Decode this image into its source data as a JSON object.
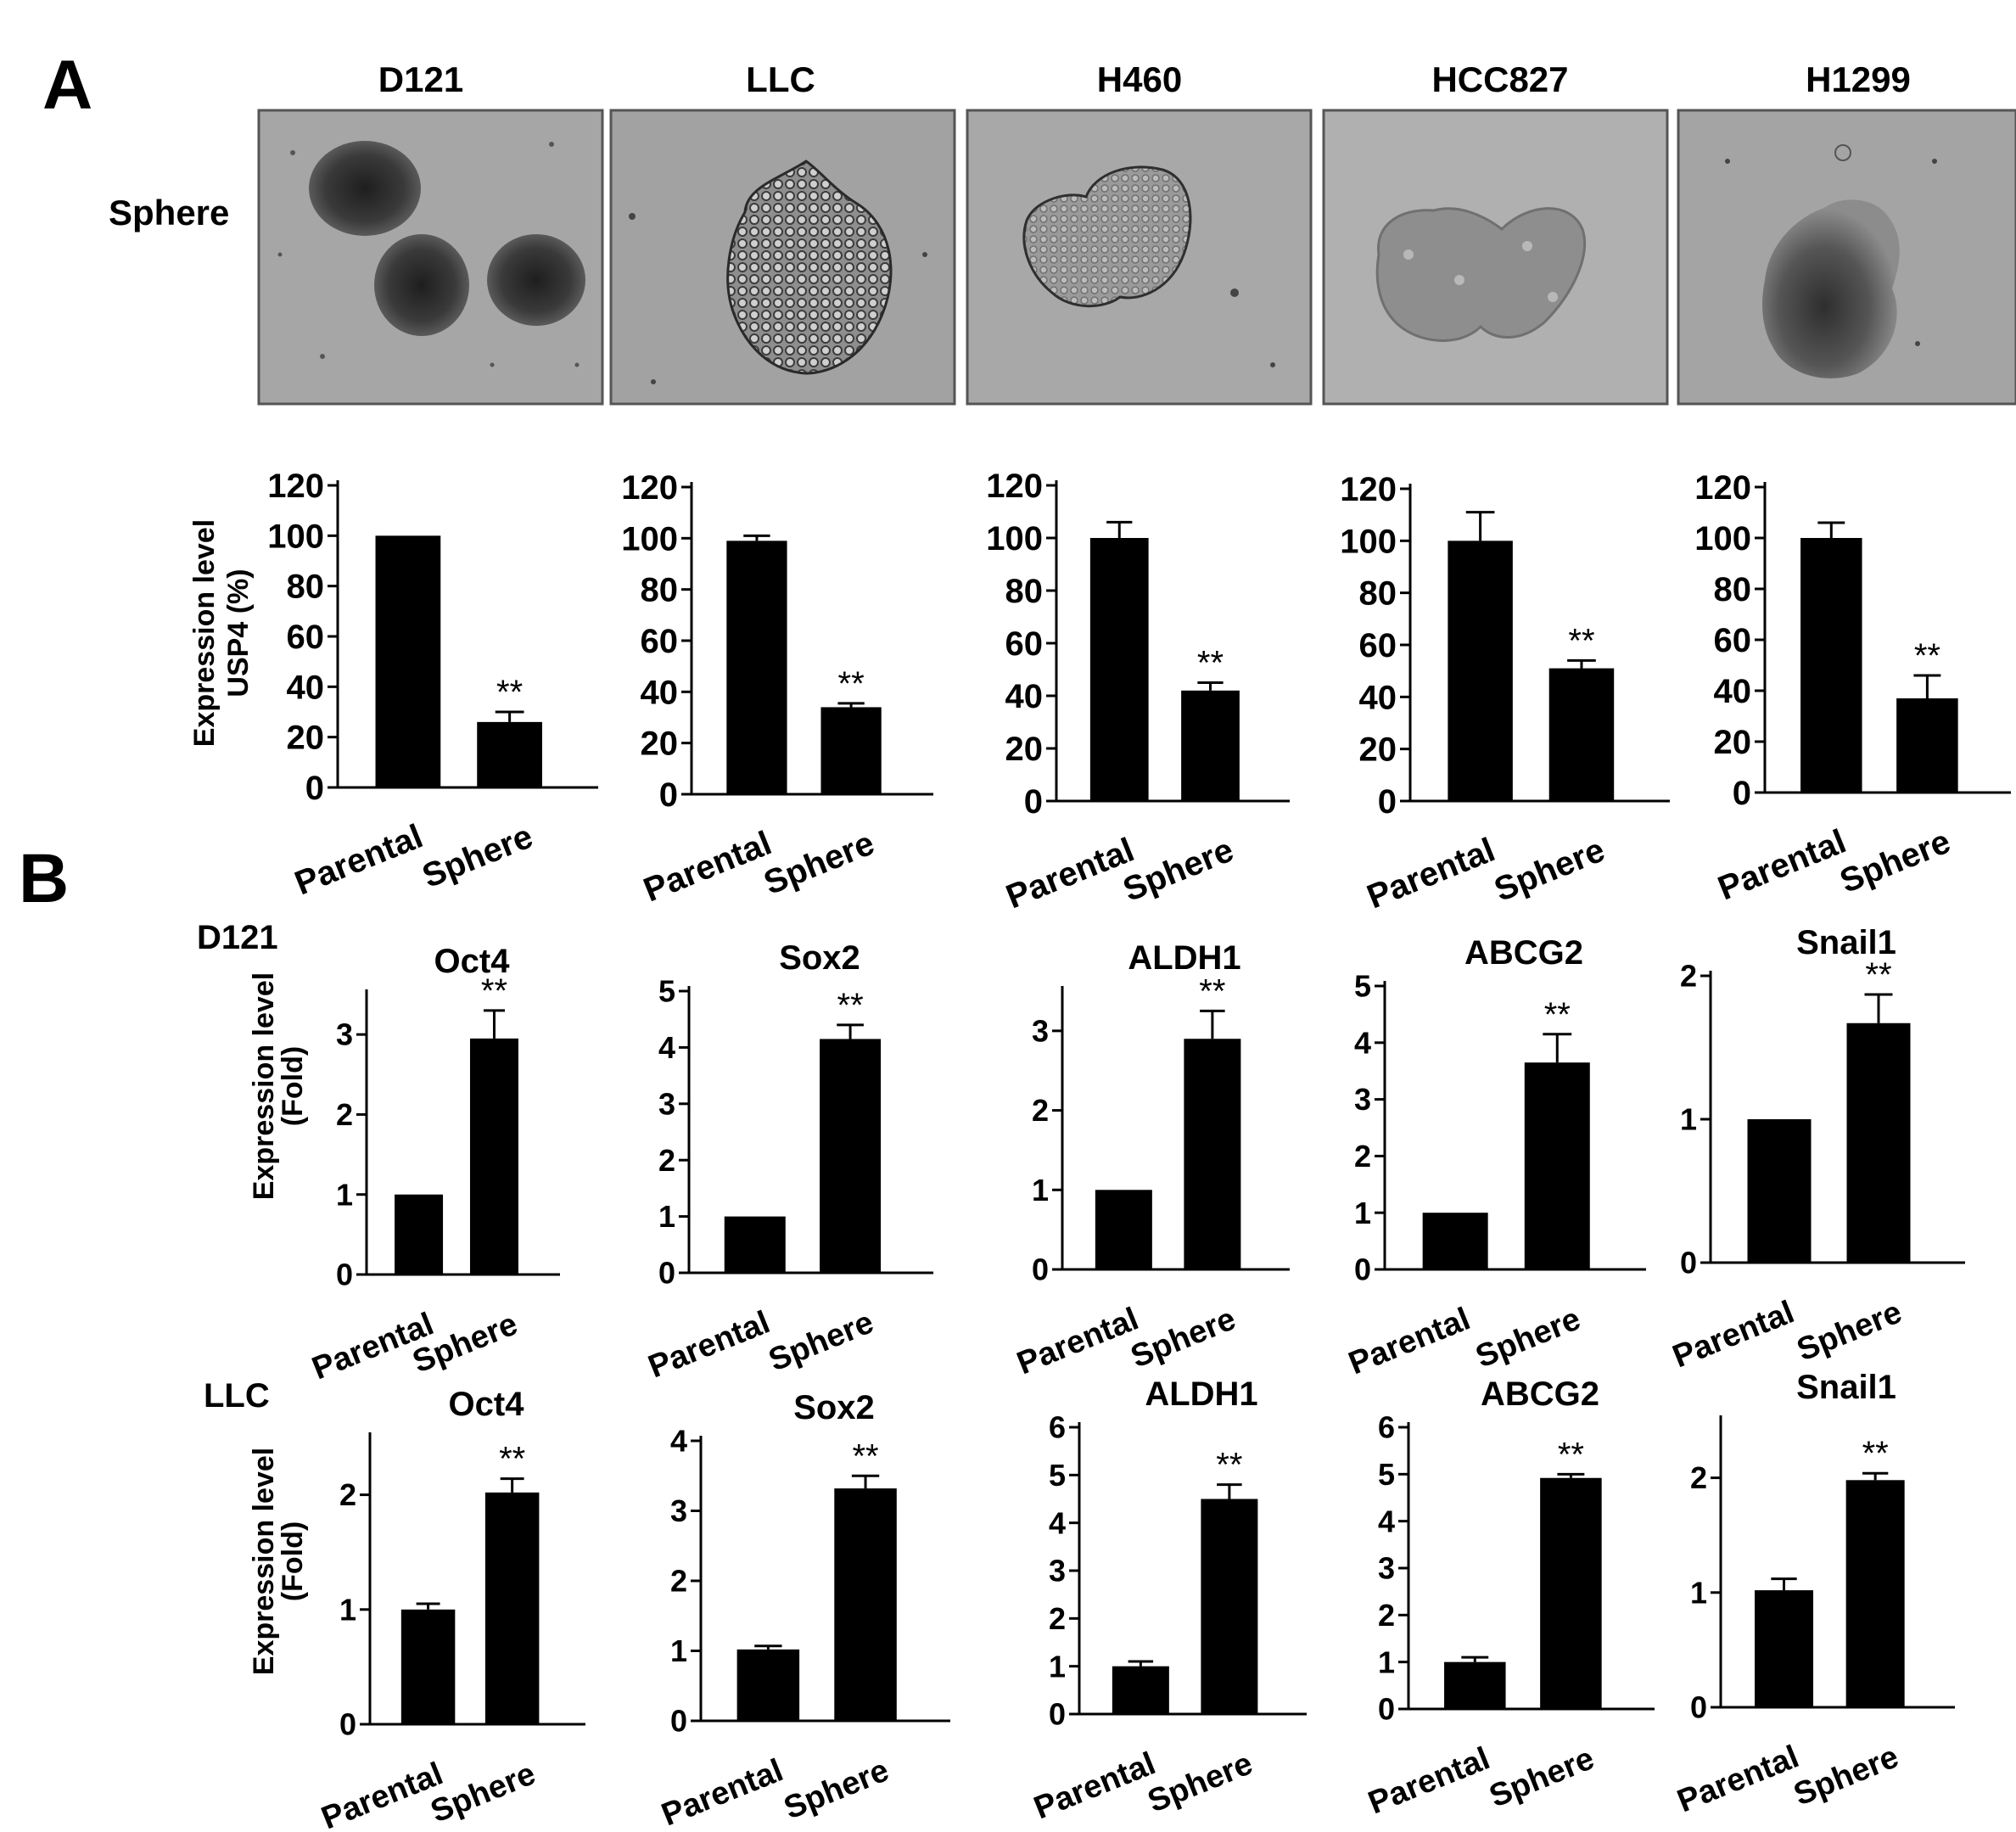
{
  "figure": {
    "panel_a_label": "A",
    "panel_b_label": "B",
    "panel_a_row_label": "Sphere",
    "panel_a_cell_lines": [
      "D121",
      "LLC",
      "H460",
      "HCC827",
      "H1299"
    ],
    "panel_a_ylabel": [
      "Expression level",
      "USP4 (%)"
    ],
    "panel_b_row_labels": [
      "D121",
      "LLC"
    ],
    "panel_b_ylabel": [
      "Expression level",
      "(Fold)"
    ]
  },
  "chart_data": [
    {
      "type": "bar",
      "group": "A",
      "title": "",
      "categories": [
        "Parental",
        "Sphere"
      ],
      "values": [
        100,
        26
      ],
      "errors": [
        0,
        4
      ],
      "ylim": [
        0,
        120
      ],
      "yticks": [
        0,
        20,
        40,
        60,
        80,
        100,
        120
      ],
      "significance": [
        "",
        "**"
      ]
    },
    {
      "type": "bar",
      "group": "A",
      "title": "",
      "categories": [
        "Parental",
        "Sphere"
      ],
      "values": [
        99,
        34
      ],
      "errors": [
        2,
        1.5
      ],
      "ylim": [
        0,
        120
      ],
      "yticks": [
        0,
        20,
        40,
        60,
        80,
        100,
        120
      ],
      "significance": [
        "",
        "**"
      ]
    },
    {
      "type": "bar",
      "group": "A",
      "title": "",
      "categories": [
        "Parental",
        "Sphere"
      ],
      "values": [
        100,
        42
      ],
      "errors": [
        6,
        3
      ],
      "ylim": [
        0,
        120
      ],
      "yticks": [
        0,
        20,
        40,
        60,
        80,
        100,
        120
      ],
      "significance": [
        "",
        "**"
      ]
    },
    {
      "type": "bar",
      "group": "A",
      "title": "",
      "categories": [
        "Parental",
        "Sphere"
      ],
      "values": [
        100,
        51
      ],
      "errors": [
        11,
        3
      ],
      "ylim": [
        0,
        120
      ],
      "yticks": [
        0,
        20,
        40,
        60,
        80,
        100,
        120
      ],
      "significance": [
        "",
        "**"
      ]
    },
    {
      "type": "bar",
      "group": "A",
      "title": "",
      "categories": [
        "Parental",
        "Sphere"
      ],
      "values": [
        100,
        37
      ],
      "errors": [
        6,
        9
      ],
      "ylim": [
        0,
        120
      ],
      "yticks": [
        0,
        20,
        40,
        60,
        80,
        100,
        120
      ],
      "significance": [
        "",
        "**"
      ]
    },
    {
      "type": "bar",
      "group": "B-D121",
      "title": "Oct4",
      "categories": [
        "Parental",
        "Sphere"
      ],
      "values": [
        1,
        2.95
      ],
      "errors": [
        0,
        0.35
      ],
      "ylim": [
        0,
        3.5
      ],
      "yticks": [
        0,
        1,
        2,
        3
      ],
      "significance": [
        "",
        "**"
      ]
    },
    {
      "type": "bar",
      "group": "B-D121",
      "title": "Sox2",
      "categories": [
        "Parental",
        "Sphere"
      ],
      "values": [
        1,
        4.15
      ],
      "errors": [
        0,
        0.25
      ],
      "ylim": [
        0,
        5
      ],
      "yticks": [
        0,
        1,
        2,
        3,
        4,
        5
      ],
      "significance": [
        "",
        "**"
      ]
    },
    {
      "type": "bar",
      "group": "B-D121",
      "title": "ALDH1",
      "categories": [
        "Parental",
        "Sphere"
      ],
      "values": [
        1,
        2.9
      ],
      "errors": [
        0,
        0.35
      ],
      "ylim": [
        0,
        3.5
      ],
      "yticks": [
        0,
        1,
        2,
        3
      ],
      "significance": [
        "",
        "**"
      ]
    },
    {
      "type": "bar",
      "group": "B-D121",
      "title": "ABCG2",
      "categories": [
        "Parental",
        "Sphere"
      ],
      "values": [
        1,
        3.65
      ],
      "errors": [
        0,
        0.5
      ],
      "ylim": [
        0,
        5
      ],
      "yticks": [
        0,
        1,
        2,
        3,
        4,
        5
      ],
      "significance": [
        "",
        "**"
      ]
    },
    {
      "type": "bar",
      "group": "B-D121",
      "title": "Snail1",
      "categories": [
        "Parental",
        "Sphere"
      ],
      "values": [
        1,
        1.67
      ],
      "errors": [
        0,
        0.2
      ],
      "ylim": [
        0,
        2
      ],
      "yticks": [
        0,
        1,
        2
      ],
      "significance": [
        "",
        "**"
      ]
    },
    {
      "type": "bar",
      "group": "B-LLC",
      "title": "Oct4",
      "categories": [
        "Parental",
        "Sphere"
      ],
      "values": [
        1,
        2.02
      ],
      "errors": [
        0.05,
        0.12
      ],
      "ylim": [
        0,
        2.5
      ],
      "yticks": [
        0,
        1,
        2
      ],
      "significance": [
        "",
        "**"
      ]
    },
    {
      "type": "bar",
      "group": "B-LLC",
      "title": "Sox2",
      "categories": [
        "Parental",
        "Sphere"
      ],
      "values": [
        1.02,
        3.32
      ],
      "errors": [
        0.05,
        0.18
      ],
      "ylim": [
        0,
        4
      ],
      "yticks": [
        0,
        1,
        2,
        3,
        4
      ],
      "significance": [
        "",
        "**"
      ]
    },
    {
      "type": "bar",
      "group": "B-LLC",
      "title": "ALDH1",
      "categories": [
        "Parental",
        "Sphere"
      ],
      "values": [
        1,
        4.5
      ],
      "errors": [
        0.1,
        0.3
      ],
      "ylim": [
        0,
        6
      ],
      "yticks": [
        0,
        1,
        2,
        3,
        4,
        5,
        6
      ],
      "significance": [
        "",
        "**"
      ]
    },
    {
      "type": "bar",
      "group": "B-LLC",
      "title": "ABCG2",
      "categories": [
        "Parental",
        "Sphere"
      ],
      "values": [
        1,
        4.92
      ],
      "errors": [
        0.1,
        0.08
      ],
      "ylim": [
        0,
        6
      ],
      "yticks": [
        0,
        1,
        2,
        3,
        4,
        5,
        6
      ],
      "significance": [
        "",
        "**"
      ]
    },
    {
      "type": "bar",
      "group": "B-LLC",
      "title": "Snail1",
      "categories": [
        "Parental",
        "Sphere"
      ],
      "values": [
        1.02,
        1.98
      ],
      "errors": [
        0.1,
        0.06
      ],
      "ylim": [
        0,
        2.5
      ],
      "yticks": [
        0,
        1,
        2
      ],
      "significance": [
        "",
        "**"
      ]
    }
  ]
}
